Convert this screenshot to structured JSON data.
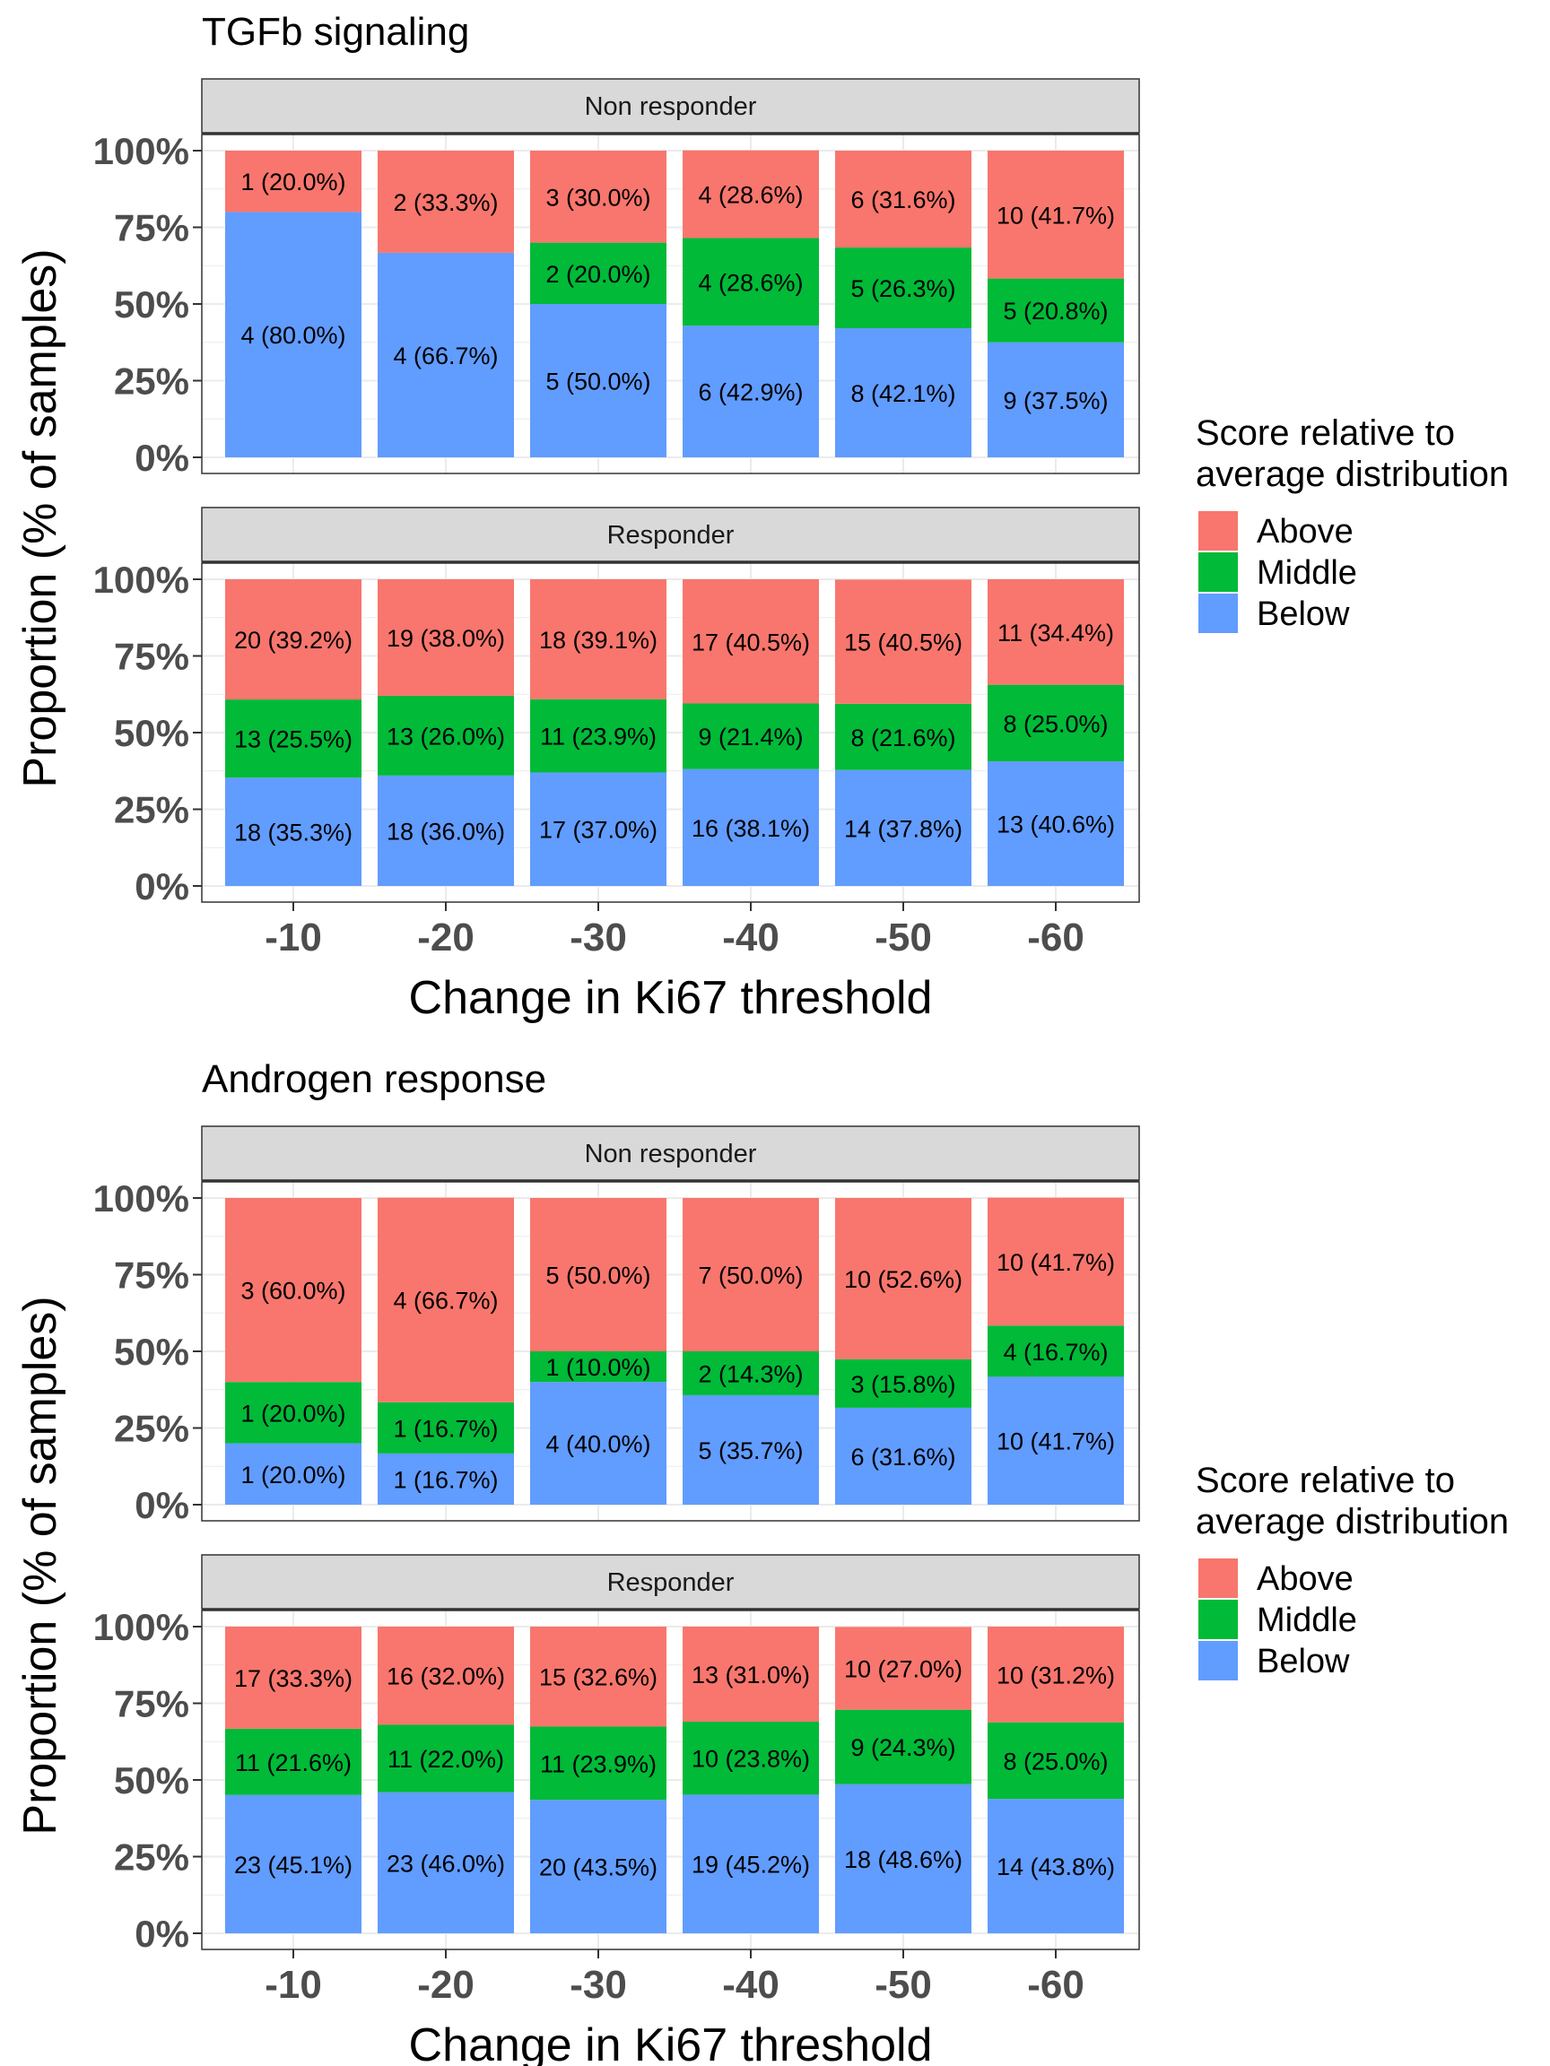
{
  "colors": {
    "above": "#F8766D",
    "middle": "#00BA38",
    "below": "#619CFF",
    "strip": "#D9D9D9",
    "grid": "#EBEBEB"
  },
  "legend": {
    "title_line1": "Score relative to",
    "title_line2": "average distribution",
    "items": [
      "Above",
      "Middle",
      "Below"
    ]
  },
  "chart_data": [
    {
      "type": "bar",
      "title": "TGFb signaling",
      "xlabel": "Change in Ki67 threshold",
      "ylabel": "Proportion (% of samples)",
      "ylim": [
        0,
        100
      ],
      "yticks": [
        "0%",
        "25%",
        "50%",
        "75%",
        "100%"
      ],
      "categories": [
        "-10",
        "-20",
        "-30",
        "-40",
        "-50",
        "-60"
      ],
      "facets": [
        {
          "name": "Non responder",
          "series": [
            {
              "name": "Below",
              "values": [
                80.0,
                66.7,
                50.0,
                42.9,
                42.1,
                37.5
              ],
              "labels": [
                "4 (80.0%)",
                "4 (66.7%)",
                "5 (50.0%)",
                "6 (42.9%)",
                "8 (42.1%)",
                "9 (37.5%)"
              ]
            },
            {
              "name": "Middle",
              "values": [
                0,
                0,
                20.0,
                28.6,
                26.3,
                20.8
              ],
              "labels": [
                "",
                "",
                "2 (20.0%)",
                "4 (28.6%)",
                "5 (26.3%)",
                "5 (20.8%)"
              ]
            },
            {
              "name": "Above",
              "values": [
                20.0,
                33.3,
                30.0,
                28.6,
                31.6,
                41.7
              ],
              "labels": [
                "1 (20.0%)",
                "2 (33.3%)",
                "3 (30.0%)",
                "4 (28.6%)",
                "6 (31.6%)",
                "10 (41.7%)"
              ]
            }
          ]
        },
        {
          "name": "Responder",
          "series": [
            {
              "name": "Below",
              "values": [
                35.3,
                36.0,
                37.0,
                38.1,
                37.8,
                40.6
              ],
              "labels": [
                "18 (35.3%)",
                "18 (36.0%)",
                "17 (37.0%)",
                "16 (38.1%)",
                "14 (37.8%)",
                "13 (40.6%)"
              ]
            },
            {
              "name": "Middle",
              "values": [
                25.5,
                26.0,
                23.9,
                21.4,
                21.6,
                25.0
              ],
              "labels": [
                "13 (25.5%)",
                "13 (26.0%)",
                "11 (23.9%)",
                "9 (21.4%)",
                "8 (21.6%)",
                "8 (25.0%)"
              ]
            },
            {
              "name": "Above",
              "values": [
                39.2,
                38.0,
                39.1,
                40.5,
                40.5,
                34.4
              ],
              "labels": [
                "20 (39.2%)",
                "19 (38.0%)",
                "18 (39.1%)",
                "17 (40.5%)",
                "15 (40.5%)",
                "11 (34.4%)"
              ]
            }
          ]
        }
      ]
    },
    {
      "type": "bar",
      "title": "Androgen response",
      "xlabel": "Change in Ki67 threshold",
      "ylabel": "Proportion (% of samples)",
      "ylim": [
        0,
        100
      ],
      "yticks": [
        "0%",
        "25%",
        "50%",
        "75%",
        "100%"
      ],
      "categories": [
        "-10",
        "-20",
        "-30",
        "-40",
        "-50",
        "-60"
      ],
      "facets": [
        {
          "name": "Non responder",
          "series": [
            {
              "name": "Below",
              "values": [
                20.0,
                16.7,
                40.0,
                35.7,
                31.6,
                41.7
              ],
              "labels": [
                "1 (20.0%)",
                "1 (16.7%)",
                "4 (40.0%)",
                "5 (35.7%)",
                "6 (31.6%)",
                "10 (41.7%)"
              ]
            },
            {
              "name": "Middle",
              "values": [
                20.0,
                16.7,
                10.0,
                14.3,
                15.8,
                16.7
              ],
              "labels": [
                "1 (20.0%)",
                "1 (16.7%)",
                "1 (10.0%)",
                "2 (14.3%)",
                "3 (15.8%)",
                "4 (16.7%)"
              ]
            },
            {
              "name": "Above",
              "values": [
                60.0,
                66.7,
                50.0,
                50.0,
                52.6,
                41.7
              ],
              "labels": [
                "3 (60.0%)",
                "4 (66.7%)",
                "5 (50.0%)",
                "7 (50.0%)",
                "10 (52.6%)",
                "10 (41.7%)"
              ]
            }
          ]
        },
        {
          "name": "Responder",
          "series": [
            {
              "name": "Below",
              "values": [
                45.1,
                46.0,
                43.5,
                45.2,
                48.6,
                43.8
              ],
              "labels": [
                "23 (45.1%)",
                "23 (46.0%)",
                "20 (43.5%)",
                "19 (45.2%)",
                "18 (48.6%)",
                "14 (43.8%)"
              ]
            },
            {
              "name": "Middle",
              "values": [
                21.6,
                22.0,
                23.9,
                23.8,
                24.3,
                25.0
              ],
              "labels": [
                "11 (21.6%)",
                "11 (22.0%)",
                "11 (23.9%)",
                "10 (23.8%)",
                "9 (24.3%)",
                "8 (25.0%)"
              ]
            },
            {
              "name": "Above",
              "values": [
                33.3,
                32.0,
                32.6,
                31.0,
                27.0,
                31.2
              ],
              "labels": [
                "17 (33.3%)",
                "16 (32.0%)",
                "15 (32.6%)",
                "13 (31.0%)",
                "10 (27.0%)",
                "10 (31.2%)"
              ]
            }
          ]
        }
      ]
    }
  ]
}
